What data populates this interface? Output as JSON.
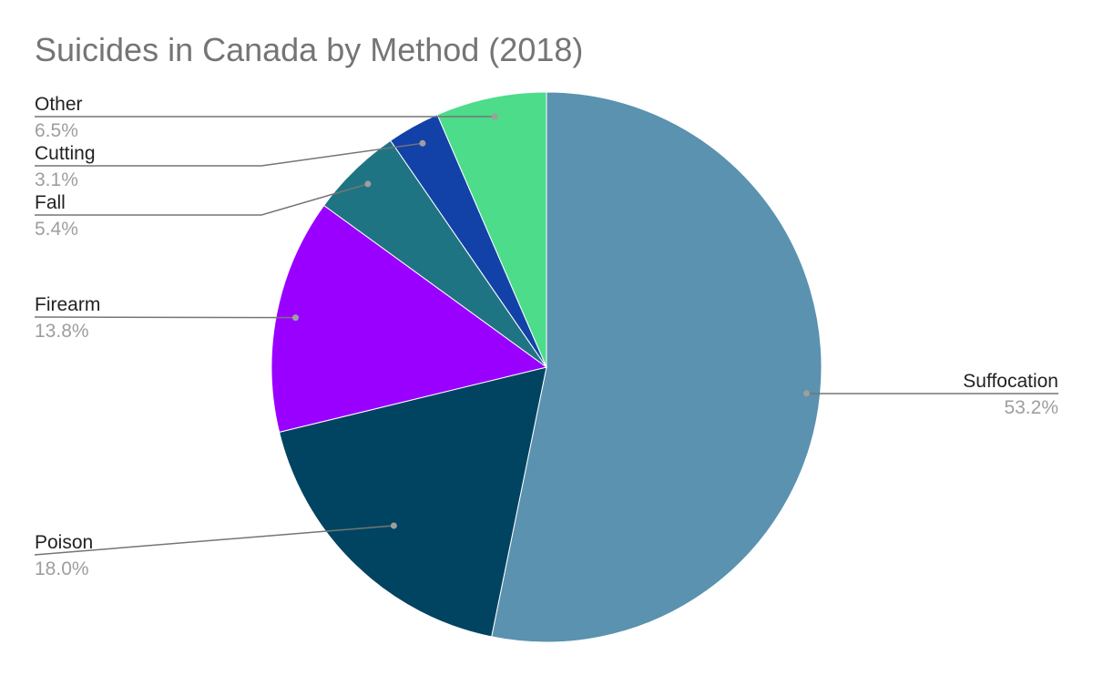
{
  "chart_data": {
    "type": "pie",
    "title": "Suicides in Canada by Method (2018)",
    "slices": [
      {
        "label": "Suffocation",
        "value": 53.2,
        "display": "53.2%",
        "color": "#5a92b0"
      },
      {
        "label": "Poison",
        "value": 18.0,
        "display": "18.0%",
        "color": "#014461"
      },
      {
        "label": "Firearm",
        "value": 13.8,
        "display": "13.8%",
        "color": "#9900ff"
      },
      {
        "label": "Fall",
        "value": 5.4,
        "display": "5.4%",
        "color": "#1f7483"
      },
      {
        "label": "Cutting",
        "value": 3.1,
        "display": "3.1%",
        "color": "#1242a8"
      },
      {
        "label": "Other",
        "value": 6.5,
        "display": "6.5%",
        "color": "#4ddc8a"
      }
    ],
    "start": "12 o'clock",
    "direction": "clockwise",
    "legend": "none",
    "labels": "outside with leader lines"
  }
}
